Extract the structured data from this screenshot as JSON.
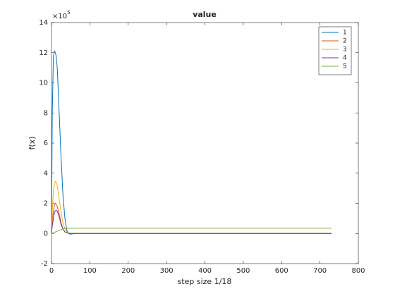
{
  "chart_data": {
    "type": "line",
    "title": "value",
    "xlabel": "step size 1/18",
    "ylabel": "f(x)",
    "y_exponent_base": "×10",
    "y_exponent_power": "5",
    "x": [
      0,
      2,
      5,
      8,
      10,
      12,
      15,
      20,
      25,
      30,
      35,
      40,
      45,
      50,
      60,
      730
    ],
    "series": [
      {
        "name": "1",
        "color": "#0072bd",
        "values": [
          0,
          8,
          11.8,
          12.1,
          12.0,
          11.8,
          11,
          8,
          5,
          2.5,
          1,
          0.2,
          0,
          -0.05,
          0,
          0
        ]
      },
      {
        "name": "2",
        "color": "#d95319",
        "values": [
          0,
          0.8,
          1.5,
          1.9,
          2.0,
          1.95,
          1.8,
          1.3,
          0.7,
          0.3,
          0.1,
          0.05,
          0,
          0,
          0,
          0
        ]
      },
      {
        "name": "3",
        "color": "#edb120",
        "values": [
          0,
          1.5,
          2.8,
          3.3,
          3.45,
          3.4,
          3.2,
          2.3,
          1.4,
          0.7,
          0.3,
          0.1,
          0.05,
          0,
          0,
          0
        ]
      },
      {
        "name": "4",
        "color": "#7e2f8e",
        "values": [
          0,
          0.5,
          1.0,
          1.4,
          1.5,
          1.55,
          1.5,
          1.1,
          0.6,
          0.3,
          0.1,
          0.05,
          0,
          0,
          0,
          0
        ]
      },
      {
        "name": "5",
        "color": "#77ac30",
        "values": [
          0,
          0.02,
          0.05,
          0.08,
          0.1,
          0.12,
          0.15,
          0.2,
          0.25,
          0.3,
          0.33,
          0.35,
          0.35,
          0.35,
          0.35,
          0.35
        ]
      }
    ],
    "xlim": [
      0,
      800
    ],
    "xticks": [
      0,
      100,
      200,
      300,
      400,
      500,
      600,
      700,
      800
    ],
    "ylim": [
      -2,
      14
    ],
    "yticks": [
      -2,
      0,
      2,
      4,
      6,
      8,
      10,
      12,
      14
    ],
    "grid": false,
    "legend": "northeast"
  }
}
